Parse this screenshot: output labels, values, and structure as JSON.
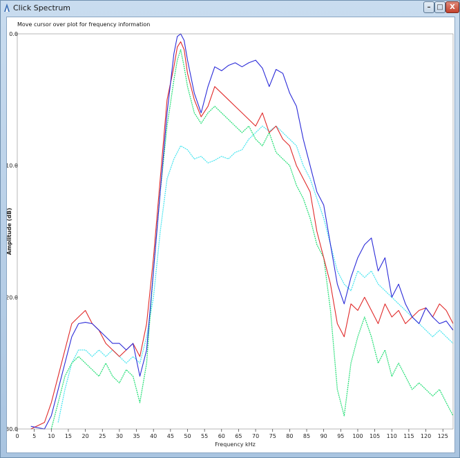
{
  "window": {
    "title": "Click Spectrum",
    "minimize_glyph": "–",
    "maximize_glyph": "□",
    "close_glyph": "X"
  },
  "hint": "Move cursor over plot for frequency information",
  "colors": {
    "series_blue": "#2a2ad8",
    "series_red": "#e02828",
    "series_green": "#2ee07c",
    "series_cyan": "#4fe6f0"
  },
  "chart_data": {
    "type": "line",
    "xlabel": "Frequency kHz",
    "ylabel": "Amplitude (dB)",
    "xlim": [
      0,
      128
    ],
    "ylim": [
      -30,
      0
    ],
    "x_ticks": [
      0,
      5,
      10,
      15,
      20,
      25,
      30,
      35,
      40,
      45,
      50,
      55,
      60,
      65,
      70,
      75,
      80,
      85,
      90,
      95,
      100,
      105,
      110,
      115,
      120,
      125
    ],
    "y_ticks": [
      "0.0",
      "-10.0",
      "-20.0",
      "-30.0"
    ],
    "y_tick_values": [
      0,
      -10,
      -20,
      -30
    ],
    "series": [
      {
        "color": "blue",
        "points": [
          [
            4,
            -29.8
          ],
          [
            8,
            -30
          ],
          [
            10,
            -29
          ],
          [
            12,
            -27
          ],
          [
            14,
            -25
          ],
          [
            16,
            -23
          ],
          [
            18,
            -22
          ],
          [
            20,
            -21.9
          ],
          [
            22,
            -22
          ],
          [
            24,
            -22.5
          ],
          [
            26,
            -23
          ],
          [
            28,
            -23.5
          ],
          [
            30,
            -23.5
          ],
          [
            32,
            -24
          ],
          [
            34,
            -23.5
          ],
          [
            36,
            -26
          ],
          [
            38,
            -24
          ],
          [
            40,
            -18
          ],
          [
            42,
            -12
          ],
          [
            44,
            -6
          ],
          [
            46,
            -1.5
          ],
          [
            47,
            -0.2
          ],
          [
            48,
            0
          ],
          [
            49,
            -0.5
          ],
          [
            50,
            -2
          ],
          [
            52,
            -4.5
          ],
          [
            54,
            -6
          ],
          [
            56,
            -4
          ],
          [
            58,
            -2.5
          ],
          [
            60,
            -2.8
          ],
          [
            62,
            -2.4
          ],
          [
            64,
            -2.2
          ],
          [
            66,
            -2.5
          ],
          [
            68,
            -2.2
          ],
          [
            70,
            -2
          ],
          [
            72,
            -2.6
          ],
          [
            74,
            -4
          ],
          [
            76,
            -2.7
          ],
          [
            78,
            -3
          ],
          [
            80,
            -4.5
          ],
          [
            82,
            -5.5
          ],
          [
            84,
            -8
          ],
          [
            86,
            -10
          ],
          [
            88,
            -12
          ],
          [
            90,
            -13
          ],
          [
            92,
            -16
          ],
          [
            94,
            -19
          ],
          [
            96,
            -20.5
          ],
          [
            98,
            -18.5
          ],
          [
            100,
            -17
          ],
          [
            102,
            -16
          ],
          [
            104,
            -15.5
          ],
          [
            106,
            -18
          ],
          [
            108,
            -17
          ],
          [
            110,
            -20
          ],
          [
            112,
            -19
          ],
          [
            114,
            -20.5
          ],
          [
            116,
            -21.5
          ],
          [
            118,
            -22
          ],
          [
            120,
            -20.8
          ],
          [
            122,
            -21.5
          ],
          [
            124,
            -22
          ],
          [
            126,
            -21.8
          ],
          [
            128,
            -22.5
          ]
        ]
      },
      {
        "color": "red",
        "points": [
          [
            4,
            -30
          ],
          [
            8,
            -29.5
          ],
          [
            10,
            -28
          ],
          [
            12,
            -26
          ],
          [
            14,
            -24
          ],
          [
            16,
            -22
          ],
          [
            18,
            -21.5
          ],
          [
            20,
            -21
          ],
          [
            22,
            -22
          ],
          [
            24,
            -22.5
          ],
          [
            26,
            -23.5
          ],
          [
            28,
            -24
          ],
          [
            30,
            -24.5
          ],
          [
            32,
            -24
          ],
          [
            34,
            -23.5
          ],
          [
            36,
            -24.5
          ],
          [
            38,
            -22
          ],
          [
            40,
            -17
          ],
          [
            42,
            -11
          ],
          [
            44,
            -5
          ],
          [
            46,
            -2.5
          ],
          [
            47,
            -1
          ],
          [
            48,
            -0.6
          ],
          [
            49,
            -1.2
          ],
          [
            50,
            -3
          ],
          [
            52,
            -5
          ],
          [
            54,
            -6.3
          ],
          [
            56,
            -5.5
          ],
          [
            58,
            -4
          ],
          [
            60,
            -4.5
          ],
          [
            62,
            -5
          ],
          [
            64,
            -5.5
          ],
          [
            66,
            -6
          ],
          [
            68,
            -6.5
          ],
          [
            70,
            -7
          ],
          [
            72,
            -6
          ],
          [
            74,
            -7.5
          ],
          [
            76,
            -7
          ],
          [
            78,
            -8
          ],
          [
            80,
            -8.5
          ],
          [
            82,
            -10
          ],
          [
            84,
            -11
          ],
          [
            86,
            -12
          ],
          [
            88,
            -15
          ],
          [
            90,
            -17
          ],
          [
            92,
            -19
          ],
          [
            94,
            -22
          ],
          [
            96,
            -23
          ],
          [
            98,
            -20.5
          ],
          [
            100,
            -21
          ],
          [
            102,
            -20
          ],
          [
            104,
            -21
          ],
          [
            106,
            -22
          ],
          [
            108,
            -20.5
          ],
          [
            110,
            -21.5
          ],
          [
            112,
            -21
          ],
          [
            114,
            -22
          ],
          [
            116,
            -21.5
          ],
          [
            118,
            -21
          ],
          [
            120,
            -20.8
          ],
          [
            122,
            -21.5
          ],
          [
            124,
            -20.5
          ],
          [
            126,
            -21
          ],
          [
            128,
            -22
          ]
        ]
      },
      {
        "color": "green",
        "points": [
          [
            10,
            -30
          ],
          [
            12,
            -28
          ],
          [
            14,
            -26
          ],
          [
            16,
            -25
          ],
          [
            18,
            -24.5
          ],
          [
            20,
            -25
          ],
          [
            22,
            -25.5
          ],
          [
            24,
            -26
          ],
          [
            26,
            -25
          ],
          [
            28,
            -26
          ],
          [
            30,
            -26.5
          ],
          [
            32,
            -25.5
          ],
          [
            34,
            -26
          ],
          [
            36,
            -28
          ],
          [
            38,
            -25
          ],
          [
            40,
            -18
          ],
          [
            42,
            -12
          ],
          [
            44,
            -7
          ],
          [
            46,
            -3.5
          ],
          [
            47,
            -2
          ],
          [
            48,
            -1.2
          ],
          [
            49,
            -2.5
          ],
          [
            50,
            -4
          ],
          [
            52,
            -6
          ],
          [
            54,
            -6.8
          ],
          [
            56,
            -6
          ],
          [
            58,
            -5.5
          ],
          [
            60,
            -6
          ],
          [
            62,
            -6.5
          ],
          [
            64,
            -7
          ],
          [
            66,
            -7.5
          ],
          [
            68,
            -7
          ],
          [
            70,
            -8
          ],
          [
            72,
            -8.5
          ],
          [
            74,
            -7.5
          ],
          [
            76,
            -9
          ],
          [
            78,
            -9.5
          ],
          [
            80,
            -10
          ],
          [
            82,
            -11.5
          ],
          [
            84,
            -12.5
          ],
          [
            86,
            -14
          ],
          [
            88,
            -16
          ],
          [
            90,
            -17
          ],
          [
            92,
            -21
          ],
          [
            94,
            -27
          ],
          [
            96,
            -29
          ],
          [
            98,
            -25
          ],
          [
            100,
            -23
          ],
          [
            102,
            -21.5
          ],
          [
            104,
            -23
          ],
          [
            106,
            -25
          ],
          [
            108,
            -24
          ],
          [
            110,
            -26
          ],
          [
            112,
            -25
          ],
          [
            114,
            -26
          ],
          [
            116,
            -27
          ],
          [
            118,
            -26.5
          ],
          [
            120,
            -27
          ],
          [
            122,
            -27.5
          ],
          [
            124,
            -27
          ],
          [
            126,
            -28
          ],
          [
            128,
            -29
          ]
        ]
      },
      {
        "color": "cyan",
        "points": [
          [
            12,
            -29.5
          ],
          [
            14,
            -27
          ],
          [
            16,
            -25
          ],
          [
            18,
            -24
          ],
          [
            20,
            -24
          ],
          [
            22,
            -24.5
          ],
          [
            24,
            -24
          ],
          [
            26,
            -24.5
          ],
          [
            28,
            -24
          ],
          [
            30,
            -24.5
          ],
          [
            32,
            -25
          ],
          [
            34,
            -24.5
          ],
          [
            36,
            -25
          ],
          [
            38,
            -23
          ],
          [
            40,
            -20
          ],
          [
            42,
            -15
          ],
          [
            44,
            -11
          ],
          [
            46,
            -9.5
          ],
          [
            48,
            -8.5
          ],
          [
            50,
            -8.8
          ],
          [
            52,
            -9.5
          ],
          [
            54,
            -9.3
          ],
          [
            56,
            -9.8
          ],
          [
            58,
            -9.6
          ],
          [
            60,
            -9.3
          ],
          [
            62,
            -9.5
          ],
          [
            64,
            -9
          ],
          [
            66,
            -8.8
          ],
          [
            68,
            -8
          ],
          [
            70,
            -7.5
          ],
          [
            72,
            -7
          ],
          [
            74,
            -7.4
          ],
          [
            76,
            -7
          ],
          [
            78,
            -7.5
          ],
          [
            80,
            -8
          ],
          [
            82,
            -8.5
          ],
          [
            84,
            -10
          ],
          [
            86,
            -11
          ],
          [
            88,
            -12.5
          ],
          [
            90,
            -14
          ],
          [
            92,
            -16
          ],
          [
            94,
            -18
          ],
          [
            96,
            -19
          ],
          [
            98,
            -19.5
          ],
          [
            100,
            -18
          ],
          [
            102,
            -18.5
          ],
          [
            104,
            -18
          ],
          [
            106,
            -19
          ],
          [
            108,
            -19.5
          ],
          [
            110,
            -20
          ],
          [
            112,
            -20.5
          ],
          [
            114,
            -21
          ],
          [
            116,
            -21.5
          ],
          [
            118,
            -22
          ],
          [
            120,
            -22.5
          ],
          [
            122,
            -23
          ],
          [
            124,
            -22.5
          ],
          [
            126,
            -23
          ],
          [
            128,
            -23.5
          ]
        ]
      }
    ]
  }
}
